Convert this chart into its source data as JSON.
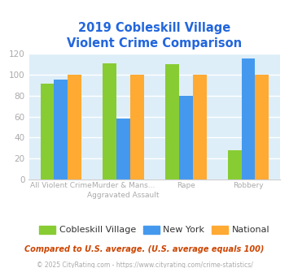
{
  "title_line1": "2019 Cobleskill Village",
  "title_line2": "Violent Crime Comparison",
  "category_labels_row1": [
    "",
    "Murder & Mans...",
    "",
    ""
  ],
  "category_labels_row2": [
    "All Violent Crime",
    "Aggravated Assault",
    "Rape",
    "Robbery"
  ],
  "series": {
    "Cobleskill Village": [
      91,
      111,
      110,
      28
    ],
    "New York": [
      95,
      58,
      80,
      115
    ],
    "National": [
      100,
      100,
      100,
      100
    ]
  },
  "series_order": [
    "Cobleskill Village",
    "New York",
    "National"
  ],
  "colors": {
    "Cobleskill Village": "#88cc33",
    "New York": "#4499ee",
    "National": "#ffaa33"
  },
  "ylim": [
    0,
    120
  ],
  "yticks": [
    0,
    20,
    40,
    60,
    80,
    100,
    120
  ],
  "title_color": "#2266dd",
  "title_fontsize": 10.5,
  "plot_bg_color": "#ddeef8",
  "fig_bg_color": "#ffffff",
  "tick_label_color": "#aaaaaa",
  "grid_color": "#ffffff",
  "legend_fontsize": 8,
  "legend_text_color": "#333333",
  "footnote1": "Compared to U.S. average. (U.S. average equals 100)",
  "footnote2": "© 2025 CityRating.com - https://www.cityrating.com/crime-statistics/",
  "footnote1_color": "#cc4400",
  "footnote2_color": "#aaaaaa",
  "bar_width": 0.22
}
